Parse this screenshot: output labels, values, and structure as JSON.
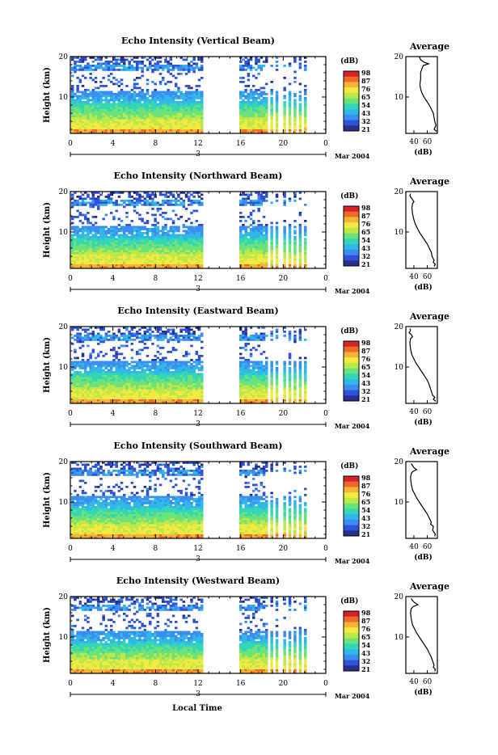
{
  "colors": {
    "colormap": [
      "#28308f",
      "#2e53d8",
      "#3b8df0",
      "#2fb8e8",
      "#35d6b6",
      "#6ce27a",
      "#bde84a",
      "#f2ea42",
      "#f4b435",
      "#ef6a2a",
      "#d4232b"
    ]
  },
  "footer": {
    "xlabel": "Local Time"
  },
  "chart_data": [
    {
      "type": "heatmap",
      "title": "Echo Intensity (Vertical Beam)",
      "ylabel": "Height (km)",
      "yticks": [
        "20",
        "10"
      ],
      "xticks": [
        "0",
        "4",
        "8",
        "12",
        "16",
        "20",
        "0"
      ],
      "ylim": [
        1,
        20
      ],
      "xlim": [
        0,
        24
      ],
      "date_marker": "3",
      "date_label": "Mar 2004",
      "colorbar": {
        "label": "(dB)",
        "ticks": [
          "98",
          "87",
          "76",
          "65",
          "54",
          "43",
          "32",
          "21"
        ]
      },
      "data_gaps_hours": [
        [
          12.4,
          15.8
        ]
      ],
      "profile": {
        "title": "Average",
        "xlabel": "(dB)",
        "xticks": [
          "40",
          "60"
        ],
        "yticks": [
          "20",
          "10"
        ],
        "xlim": [
          28,
          75
        ],
        "points": [
          [
            48,
            20
          ],
          [
            50,
            19.2
          ],
          [
            55,
            18.6
          ],
          [
            62,
            18.2
          ],
          [
            54,
            17.8
          ],
          [
            52,
            17
          ],
          [
            50,
            16
          ],
          [
            50,
            14.5
          ],
          [
            49,
            13
          ],
          [
            50,
            12
          ],
          [
            52,
            11
          ],
          [
            55,
            10
          ],
          [
            59,
            9
          ],
          [
            63,
            8
          ],
          [
            66,
            7
          ],
          [
            69,
            6
          ],
          [
            70,
            5
          ],
          [
            71,
            4
          ],
          [
            73,
            3
          ],
          [
            70,
            2
          ],
          [
            74,
            1.5
          ]
        ]
      }
    },
    {
      "type": "heatmap",
      "title": "Echo Intensity (Northward Beam)",
      "ylabel": "Height (km)",
      "yticks": [
        "20",
        "10"
      ],
      "xticks": [
        "0",
        "4",
        "8",
        "12",
        "16",
        "20",
        "0"
      ],
      "ylim": [
        1,
        20
      ],
      "xlim": [
        0,
        24
      ],
      "date_marker": "3",
      "date_label": "Mar 2004",
      "colorbar": {
        "label": "(dB)",
        "ticks": [
          "98",
          "87",
          "76",
          "65",
          "54",
          "43",
          "32",
          "21"
        ]
      },
      "data_gaps_hours": [
        [
          12.4,
          15.8
        ]
      ],
      "profile": {
        "title": "Average",
        "xlabel": "(dB)",
        "xticks": [
          "40",
          "60"
        ],
        "yticks": [
          "20",
          "10"
        ],
        "xlim": [
          28,
          75
        ],
        "points": [
          [
            35,
            19.5
          ],
          [
            34,
            19
          ],
          [
            36,
            18.5
          ],
          [
            38,
            18
          ],
          [
            40,
            17.5
          ],
          [
            38,
            17
          ],
          [
            37,
            16
          ],
          [
            38,
            14.5
          ],
          [
            40,
            13
          ],
          [
            42,
            12
          ],
          [
            45,
            11
          ],
          [
            48,
            10
          ],
          [
            52,
            9
          ],
          [
            56,
            8
          ],
          [
            60,
            7
          ],
          [
            63,
            6
          ],
          [
            66,
            5
          ],
          [
            67,
            4
          ],
          [
            70,
            3
          ],
          [
            69,
            2.5
          ],
          [
            72,
            2
          ],
          [
            70,
            1.5
          ]
        ]
      }
    },
    {
      "type": "heatmap",
      "title": "Echo Intensity (Eastward Beam)",
      "ylabel": "Height (km)",
      "yticks": [
        "20",
        "10"
      ],
      "xticks": [
        "0",
        "4",
        "8",
        "12",
        "16",
        "20",
        "0"
      ],
      "ylim": [
        1,
        20
      ],
      "xlim": [
        0,
        24
      ],
      "date_marker": "3",
      "date_label": "Mar 2004",
      "colorbar": {
        "label": "(dB)",
        "ticks": [
          "98",
          "87",
          "76",
          "65",
          "54",
          "43",
          "32",
          "21"
        ]
      },
      "data_gaps_hours": [
        [
          12.4,
          15.8
        ]
      ],
      "profile": {
        "title": "Average",
        "xlabel": "(dB)",
        "xticks": [
          "40",
          "60"
        ],
        "yticks": [
          "20",
          "10"
        ],
        "xlim": [
          28,
          75
        ],
        "points": [
          [
            34,
            19.5
          ],
          [
            35,
            19
          ],
          [
            33,
            18.5
          ],
          [
            36,
            18
          ],
          [
            38,
            17.5
          ],
          [
            35,
            17
          ],
          [
            34,
            16
          ],
          [
            35,
            14.5
          ],
          [
            37,
            13
          ],
          [
            40,
            12
          ],
          [
            43,
            11
          ],
          [
            47,
            10
          ],
          [
            51,
            9
          ],
          [
            55,
            8
          ],
          [
            59,
            7
          ],
          [
            62,
            6
          ],
          [
            64,
            5
          ],
          [
            66,
            4
          ],
          [
            68,
            3
          ],
          [
            71,
            2.5
          ],
          [
            69,
            2
          ],
          [
            73,
            1.5
          ]
        ]
      }
    },
    {
      "type": "heatmap",
      "title": "Echo Intensity (Southward Beam)",
      "ylabel": "Height (km)",
      "yticks": [
        "20",
        "10"
      ],
      "xticks": [
        "0",
        "4",
        "8",
        "12",
        "16",
        "20",
        "0"
      ],
      "ylim": [
        1,
        20
      ],
      "xlim": [
        0,
        24
      ],
      "date_marker": "3",
      "date_label": "Mar 2004",
      "colorbar": {
        "label": "(dB)",
        "ticks": [
          "98",
          "87",
          "76",
          "65",
          "54",
          "43",
          "32",
          "21"
        ]
      },
      "data_gaps_hours": [
        [
          12.4,
          15.8
        ]
      ],
      "profile": {
        "title": "Average",
        "xlabel": "(dB)",
        "xticks": [
          "40",
          "60"
        ],
        "yticks": [
          "20",
          "10"
        ],
        "xlim": [
          28,
          75
        ],
        "points": [
          [
            36,
            19.5
          ],
          [
            38,
            19
          ],
          [
            40,
            18.5
          ],
          [
            44,
            18
          ],
          [
            38,
            17.5
          ],
          [
            36,
            17
          ],
          [
            35,
            16
          ],
          [
            36,
            14.5
          ],
          [
            38,
            13
          ],
          [
            41,
            12
          ],
          [
            44,
            11
          ],
          [
            48,
            10
          ],
          [
            52,
            9
          ],
          [
            56,
            8
          ],
          [
            60,
            7
          ],
          [
            63,
            6
          ],
          [
            66,
            5
          ],
          [
            65,
            4.5
          ],
          [
            69,
            4
          ],
          [
            68,
            3
          ],
          [
            70,
            2.5
          ],
          [
            72,
            2
          ],
          [
            71,
            1.5
          ]
        ]
      }
    },
    {
      "type": "heatmap",
      "title": "Echo Intensity (Westward Beam)",
      "ylabel": "Height (km)",
      "yticks": [
        "20",
        "10"
      ],
      "xticks": [
        "0",
        "4",
        "8",
        "12",
        "16",
        "20",
        "0"
      ],
      "ylim": [
        1,
        20
      ],
      "xlim": [
        0,
        24
      ],
      "date_marker": "3",
      "date_label": "Mar 2004",
      "colorbar": {
        "label": "(dB)",
        "ticks": [
          "98",
          "87",
          "76",
          "65",
          "54",
          "43",
          "32",
          "21"
        ]
      },
      "data_gaps_hours": [
        [
          12.4,
          15.8
        ]
      ],
      "profile": {
        "title": "Average",
        "xlabel": "(dB)",
        "xticks": [
          "40",
          "60"
        ],
        "yticks": [
          "20",
          "10"
        ],
        "xlim": [
          28,
          75
        ],
        "points": [
          [
            36,
            19.5
          ],
          [
            38,
            19
          ],
          [
            41,
            18.5
          ],
          [
            46,
            18
          ],
          [
            39,
            17.5
          ],
          [
            36,
            17
          ],
          [
            35,
            16
          ],
          [
            36,
            14.5
          ],
          [
            38,
            13
          ],
          [
            41,
            12
          ],
          [
            44,
            11
          ],
          [
            48,
            10
          ],
          [
            52,
            9
          ],
          [
            56,
            8
          ],
          [
            60,
            7
          ],
          [
            63,
            6
          ],
          [
            66,
            5
          ],
          [
            68,
            4
          ],
          [
            70,
            3
          ],
          [
            69,
            2.5
          ],
          [
            72,
            2
          ],
          [
            71,
            1.5
          ]
        ]
      }
    }
  ]
}
